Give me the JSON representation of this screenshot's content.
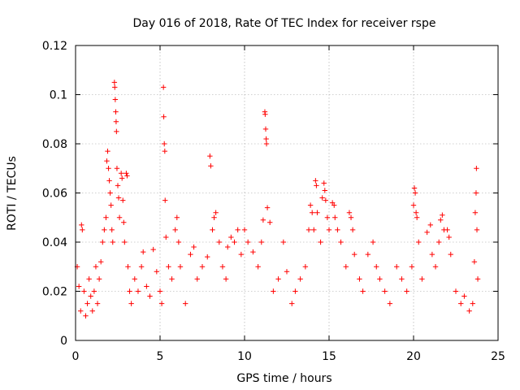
{
  "chart_data": {
    "type": "scatter",
    "title": "Day 016 of 2018, Rate Of TEC Index for receiver rspe",
    "xlabel": "GPS time / hours",
    "ylabel": "ROTI / TECUs",
    "xlim": [
      0,
      25
    ],
    "ylim": [
      0,
      0.12
    ],
    "xticks": [
      0,
      5,
      10,
      15,
      20,
      25
    ],
    "xtick_labels": [
      "0",
      "5",
      "10",
      "15",
      "20",
      "25"
    ],
    "yticks": [
      0,
      0.02,
      0.04,
      0.06,
      0.08,
      0.1,
      0.12
    ],
    "ytick_labels": [
      "0",
      "0.02",
      "0.04",
      "0.06",
      "0.08",
      "0.1",
      "0.12"
    ],
    "grid": true,
    "marker": "+",
    "color": "#ff0000",
    "series": [
      {
        "name": "ROTI",
        "points": [
          [
            0.1,
            0.03
          ],
          [
            0.2,
            0.022
          ],
          [
            0.3,
            0.012
          ],
          [
            0.35,
            0.047
          ],
          [
            0.4,
            0.045
          ],
          [
            0.5,
            0.02
          ],
          [
            0.6,
            0.01
          ],
          [
            0.7,
            0.015
          ],
          [
            0.8,
            0.025
          ],
          [
            0.9,
            0.018
          ],
          [
            1.0,
            0.012
          ],
          [
            1.1,
            0.02
          ],
          [
            1.2,
            0.03
          ],
          [
            1.3,
            0.015
          ],
          [
            1.4,
            0.025
          ],
          [
            1.5,
            0.032
          ],
          [
            1.6,
            0.04
          ],
          [
            1.7,
            0.045
          ],
          [
            1.8,
            0.05
          ],
          [
            1.85,
            0.073
          ],
          [
            1.9,
            0.077
          ],
          [
            1.95,
            0.07
          ],
          [
            2.0,
            0.065
          ],
          [
            2.05,
            0.06
          ],
          [
            2.1,
            0.055
          ],
          [
            2.15,
            0.045
          ],
          [
            2.2,
            0.04
          ],
          [
            2.3,
            0.105
          ],
          [
            2.32,
            0.103
          ],
          [
            2.35,
            0.098
          ],
          [
            2.38,
            0.093
          ],
          [
            2.4,
            0.089
          ],
          [
            2.42,
            0.085
          ],
          [
            2.45,
            0.07
          ],
          [
            2.5,
            0.063
          ],
          [
            2.55,
            0.058
          ],
          [
            2.6,
            0.05
          ],
          [
            2.7,
            0.068
          ],
          [
            2.75,
            0.066
          ],
          [
            2.8,
            0.057
          ],
          [
            2.85,
            0.048
          ],
          [
            2.9,
            0.04
          ],
          [
            3.0,
            0.068
          ],
          [
            3.05,
            0.067
          ],
          [
            3.1,
            0.03
          ],
          [
            3.2,
            0.02
          ],
          [
            3.3,
            0.015
          ],
          [
            3.5,
            0.025
          ],
          [
            3.7,
            0.02
          ],
          [
            3.9,
            0.03
          ],
          [
            4.0,
            0.036
          ],
          [
            4.2,
            0.022
          ],
          [
            4.4,
            0.018
          ],
          [
            4.6,
            0.037
          ],
          [
            4.8,
            0.028
          ],
          [
            5.0,
            0.02
          ],
          [
            5.1,
            0.015
          ],
          [
            5.2,
            0.103
          ],
          [
            5.22,
            0.091
          ],
          [
            5.25,
            0.08
          ],
          [
            5.28,
            0.077
          ],
          [
            5.3,
            0.057
          ],
          [
            5.35,
            0.042
          ],
          [
            5.5,
            0.03
          ],
          [
            5.7,
            0.025
          ],
          [
            5.9,
            0.045
          ],
          [
            6.0,
            0.05
          ],
          [
            6.1,
            0.04
          ],
          [
            6.2,
            0.03
          ],
          [
            6.5,
            0.015
          ],
          [
            6.8,
            0.035
          ],
          [
            7.0,
            0.038
          ],
          [
            7.2,
            0.025
          ],
          [
            7.5,
            0.03
          ],
          [
            7.8,
            0.034
          ],
          [
            7.95,
            0.075
          ],
          [
            8.0,
            0.071
          ],
          [
            8.1,
            0.045
          ],
          [
            8.2,
            0.05
          ],
          [
            8.3,
            0.052
          ],
          [
            8.5,
            0.04
          ],
          [
            8.7,
            0.03
          ],
          [
            8.9,
            0.025
          ],
          [
            9.0,
            0.038
          ],
          [
            9.2,
            0.042
          ],
          [
            9.4,
            0.04
          ],
          [
            9.6,
            0.045
          ],
          [
            9.8,
            0.035
          ],
          [
            10.0,
            0.045
          ],
          [
            10.2,
            0.04
          ],
          [
            10.5,
            0.036
          ],
          [
            10.8,
            0.03
          ],
          [
            11.0,
            0.04
          ],
          [
            11.1,
            0.049
          ],
          [
            11.2,
            0.093
          ],
          [
            11.22,
            0.092
          ],
          [
            11.25,
            0.086
          ],
          [
            11.28,
            0.082
          ],
          [
            11.3,
            0.08
          ],
          [
            11.35,
            0.054
          ],
          [
            11.5,
            0.048
          ],
          [
            11.7,
            0.02
          ],
          [
            12.0,
            0.025
          ],
          [
            12.3,
            0.04
          ],
          [
            12.5,
            0.028
          ],
          [
            12.8,
            0.015
          ],
          [
            13.0,
            0.02
          ],
          [
            13.3,
            0.025
          ],
          [
            13.6,
            0.03
          ],
          [
            13.8,
            0.045
          ],
          [
            13.9,
            0.055
          ],
          [
            14.0,
            0.052
          ],
          [
            14.1,
            0.045
          ],
          [
            14.2,
            0.065
          ],
          [
            14.25,
            0.063
          ],
          [
            14.3,
            0.052
          ],
          [
            14.5,
            0.04
          ],
          [
            14.6,
            0.058
          ],
          [
            14.7,
            0.064
          ],
          [
            14.75,
            0.061
          ],
          [
            14.8,
            0.057
          ],
          [
            14.9,
            0.05
          ],
          [
            15.0,
            0.045
          ],
          [
            15.2,
            0.056
          ],
          [
            15.3,
            0.055
          ],
          [
            15.35,
            0.05
          ],
          [
            15.5,
            0.045
          ],
          [
            15.7,
            0.04
          ],
          [
            16.0,
            0.03
          ],
          [
            16.2,
            0.052
          ],
          [
            16.3,
            0.05
          ],
          [
            16.4,
            0.045
          ],
          [
            16.5,
            0.035
          ],
          [
            16.8,
            0.025
          ],
          [
            17.0,
            0.02
          ],
          [
            17.3,
            0.035
          ],
          [
            17.6,
            0.04
          ],
          [
            17.8,
            0.03
          ],
          [
            18.0,
            0.025
          ],
          [
            18.3,
            0.02
          ],
          [
            18.6,
            0.015
          ],
          [
            19.0,
            0.03
          ],
          [
            19.3,
            0.025
          ],
          [
            19.6,
            0.02
          ],
          [
            19.9,
            0.03
          ],
          [
            20.0,
            0.055
          ],
          [
            20.05,
            0.062
          ],
          [
            20.1,
            0.06
          ],
          [
            20.15,
            0.052
          ],
          [
            20.2,
            0.05
          ],
          [
            20.3,
            0.04
          ],
          [
            20.5,
            0.025
          ],
          [
            20.8,
            0.044
          ],
          [
            21.0,
            0.047
          ],
          [
            21.1,
            0.035
          ],
          [
            21.3,
            0.03
          ],
          [
            21.5,
            0.04
          ],
          [
            21.6,
            0.049
          ],
          [
            21.7,
            0.051
          ],
          [
            21.8,
            0.045
          ],
          [
            22.0,
            0.045
          ],
          [
            22.1,
            0.042
          ],
          [
            22.2,
            0.035
          ],
          [
            22.5,
            0.02
          ],
          [
            22.8,
            0.015
          ],
          [
            23.0,
            0.018
          ],
          [
            23.3,
            0.012
          ],
          [
            23.5,
            0.015
          ],
          [
            23.6,
            0.032
          ],
          [
            23.65,
            0.052
          ],
          [
            23.7,
            0.06
          ],
          [
            23.72,
            0.07
          ],
          [
            23.75,
            0.045
          ],
          [
            23.8,
            0.025
          ]
        ]
      }
    ]
  }
}
